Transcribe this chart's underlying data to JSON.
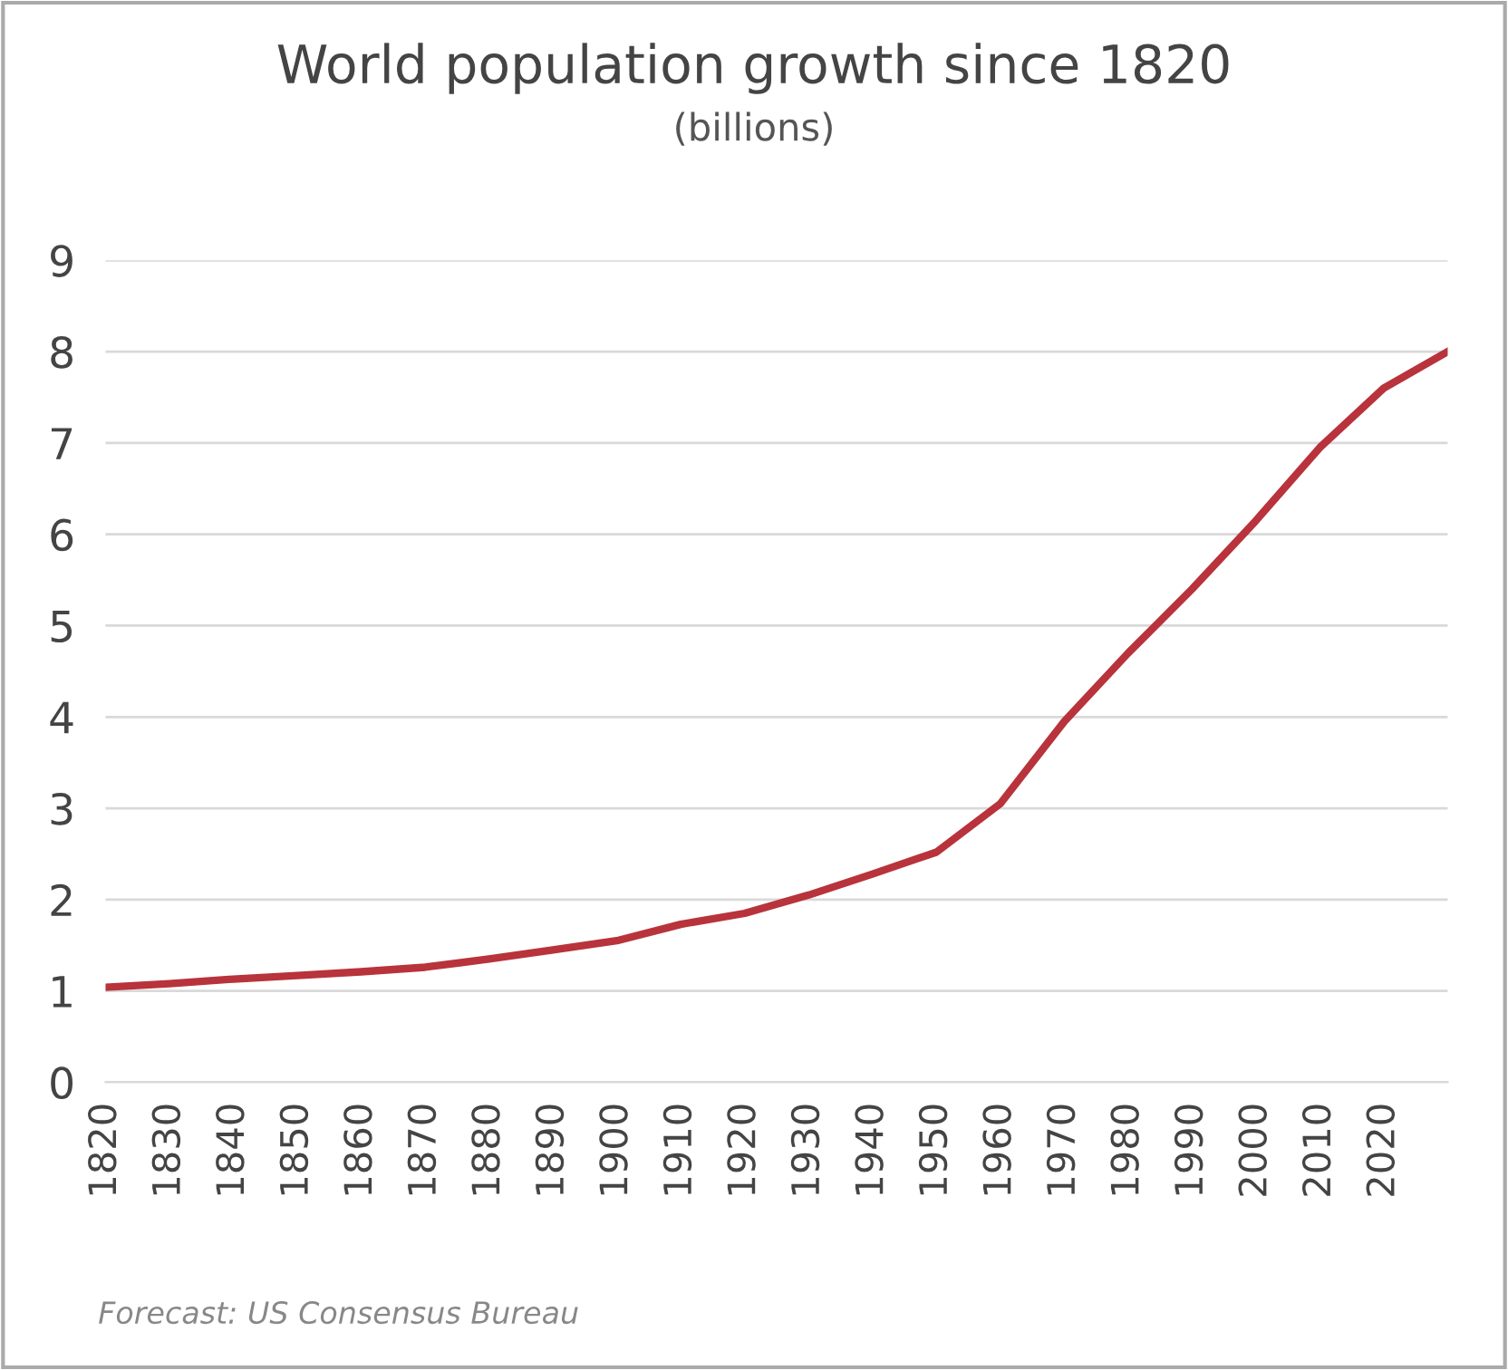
{
  "chart_data": {
    "type": "line",
    "title": "World population growth since 1820",
    "subtitle": "(billions)",
    "annotations": [
      "Forecast: US Consensus Bureau"
    ],
    "x": [
      1820,
      1830,
      1840,
      1850,
      1860,
      1870,
      1880,
      1890,
      1900,
      1910,
      1920,
      1930,
      1940,
      1950,
      1960,
      1970,
      1980,
      1990,
      2000,
      2010,
      2020,
      2030
    ],
    "series": [
      {
        "color": "#b8333b",
        "values": [
          1.04,
          1.08,
          1.13,
          1.17,
          1.21,
          1.26,
          1.35,
          1.45,
          1.55,
          1.73,
          1.85,
          2.05,
          2.28,
          2.52,
          3.05,
          3.95,
          4.7,
          5.4,
          6.15,
          6.95,
          7.6,
          8.0
        ]
      }
    ],
    "xlim": [
      1820,
      2030
    ],
    "xticks": [
      1820,
      1830,
      1840,
      1850,
      1860,
      1870,
      1880,
      1890,
      1900,
      1910,
      1920,
      1930,
      1940,
      1950,
      1960,
      1970,
      1980,
      1990,
      2000,
      2010,
      2020
    ],
    "ylim": [
      0,
      9
    ],
    "yticks": [
      0,
      1,
      2,
      3,
      4,
      5,
      6,
      7,
      8,
      9
    ],
    "grid": "y",
    "legend": false,
    "marker": "none",
    "line_style": "solid"
  }
}
